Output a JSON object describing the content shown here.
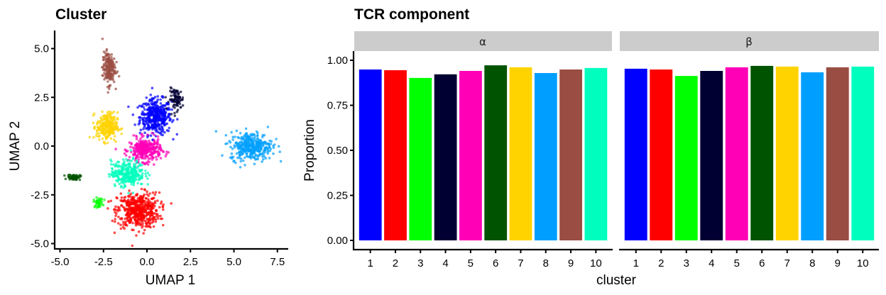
{
  "chart_data": [
    {
      "type": "scatter",
      "title": "Cluster",
      "xlabel": "UMAP 1",
      "ylabel": "UMAP 2",
      "xlim": [
        -5.2,
        8.0
      ],
      "ylim": [
        -5.3,
        5.9
      ],
      "xticks": [
        "-5.0",
        "-2.5",
        "0.0",
        "2.5",
        "5.0",
        "7.5"
      ],
      "xtick_values": [
        -5.0,
        -2.5,
        0.0,
        2.5,
        5.0,
        7.5
      ],
      "yticks": [
        "-5.0",
        "-2.5",
        "0.0",
        "2.5",
        "5.0"
      ],
      "ytick_values": [
        -5.0,
        -2.5,
        0.0,
        2.5,
        5.0
      ],
      "grid": false,
      "legend": "none",
      "clusters": [
        {
          "cluster": "1",
          "color": "#0000FF",
          "center": [
            0.5,
            1.5
          ],
          "spread": [
            0.75,
            0.75
          ],
          "n": 420
        },
        {
          "cluster": "2",
          "color": "#FF0000",
          "center": [
            -0.5,
            -3.3
          ],
          "spread": [
            1.0,
            0.75
          ],
          "n": 520
        },
        {
          "cluster": "3",
          "color": "#00FF00",
          "center": [
            -2.8,
            -2.9
          ],
          "spread": [
            0.22,
            0.2
          ],
          "n": 40
        },
        {
          "cluster": "4",
          "color": "#000033",
          "center": [
            1.7,
            2.4
          ],
          "spread": [
            0.35,
            0.45
          ],
          "n": 90
        },
        {
          "cluster": "5",
          "color": "#FF00B6",
          "center": [
            -0.1,
            -0.2
          ],
          "spread": [
            0.75,
            0.5
          ],
          "n": 320
        },
        {
          "cluster": "6",
          "color": "#005300",
          "center": [
            -4.2,
            -1.6
          ],
          "spread": [
            0.3,
            0.12
          ],
          "n": 60
        },
        {
          "cluster": "7",
          "color": "#FFD300",
          "center": [
            -2.3,
            1.0
          ],
          "spread": [
            0.5,
            0.6
          ],
          "n": 260
        },
        {
          "cluster": "8",
          "color": "#009FFF",
          "center": [
            6.0,
            0.0
          ],
          "spread": [
            1.0,
            0.6
          ],
          "n": 360
        },
        {
          "cluster": "9",
          "color": "#9A4D42",
          "center": [
            -2.2,
            4.0
          ],
          "spread": [
            0.3,
            0.7
          ],
          "n": 180
        },
        {
          "cluster": "10",
          "color": "#00FFBE",
          "center": [
            -1.1,
            -1.4
          ],
          "spread": [
            0.8,
            0.55
          ],
          "n": 300
        }
      ]
    },
    {
      "type": "bar",
      "title": "TCR component",
      "xlabel": "cluster",
      "ylabel": "Proportion",
      "ylim": [
        0,
        1.0
      ],
      "yticks": [
        "0.00",
        "0.25",
        "0.50",
        "0.75",
        "1.00"
      ],
      "ytick_values": [
        0.0,
        0.25,
        0.5,
        0.75,
        1.0
      ],
      "categories": [
        "1",
        "2",
        "3",
        "4",
        "5",
        "6",
        "7",
        "8",
        "9",
        "10"
      ],
      "colors": [
        "#0000FF",
        "#FF0000",
        "#00FF00",
        "#000033",
        "#FF00B6",
        "#005300",
        "#FFD300",
        "#009FFF",
        "#9A4D42",
        "#00FFBE"
      ],
      "facets": [
        "α",
        "β"
      ],
      "series": [
        {
          "name": "α",
          "values": [
            0.949,
            0.945,
            0.902,
            0.922,
            0.941,
            0.972,
            0.961,
            0.929,
            0.949,
            0.957
          ]
        },
        {
          "name": "β",
          "values": [
            0.953,
            0.949,
            0.913,
            0.941,
            0.961,
            0.969,
            0.965,
            0.933,
            0.961,
            0.965
          ]
        }
      ],
      "grid": false,
      "legend": "none"
    }
  ]
}
